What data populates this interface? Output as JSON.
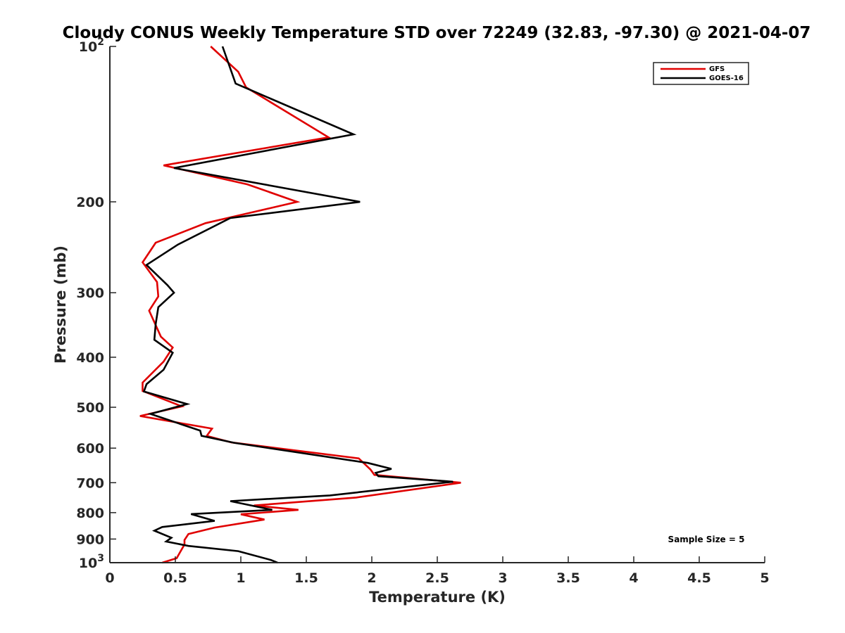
{
  "chart_data": {
    "type": "line",
    "title": "Cloudy CONUS Weekly Temperature STD over 72249 (32.83, -97.30) @ 2021-04-07",
    "xlabel": "Temperature (K)",
    "ylabel": "Pressure (mb)",
    "xlim": [
      0,
      5
    ],
    "ylim": [
      100,
      1000
    ],
    "y_scale": "log",
    "y_reversed": true,
    "x_ticks": [
      "0",
      "0.5",
      "1",
      "1.5",
      "2",
      "2.5",
      "3",
      "3.5",
      "4",
      "4.5",
      "5"
    ],
    "y_ticks": [
      {
        "value": 100,
        "label": "10",
        "sup": "2"
      },
      {
        "value": 200,
        "label": "200",
        "sup": ""
      },
      {
        "value": 300,
        "label": "300",
        "sup": ""
      },
      {
        "value": 400,
        "label": "400",
        "sup": ""
      },
      {
        "value": 500,
        "label": "500",
        "sup": ""
      },
      {
        "value": 600,
        "label": "600",
        "sup": ""
      },
      {
        "value": 700,
        "label": "700",
        "sup": ""
      },
      {
        "value": 800,
        "label": "800",
        "sup": ""
      },
      {
        "value": 900,
        "label": "900",
        "sup": ""
      },
      {
        "value": 1000,
        "label": "10",
        "sup": "3"
      }
    ],
    "grid": false,
    "legend_position": "top-right",
    "annotation": "Sample Size = 5",
    "series": [
      {
        "name": "GFS",
        "color": "#e00000",
        "points": [
          [
            0.77,
            100
          ],
          [
            0.98,
            112
          ],
          [
            1.04,
            120
          ],
          [
            1.67,
            150
          ],
          [
            0.41,
            170
          ],
          [
            1.05,
            185
          ],
          [
            1.43,
            200
          ],
          [
            0.73,
            220
          ],
          [
            0.35,
            240
          ],
          [
            0.25,
            262
          ],
          [
            0.36,
            286
          ],
          [
            0.37,
            305
          ],
          [
            0.3,
            325
          ],
          [
            0.39,
            365
          ],
          [
            0.48,
            383
          ],
          [
            0.41,
            408
          ],
          [
            0.25,
            448
          ],
          [
            0.25,
            465
          ],
          [
            0.55,
            498
          ],
          [
            0.23,
            520
          ],
          [
            0.78,
            550
          ],
          [
            0.74,
            568
          ],
          [
            0.93,
            585
          ],
          [
            1.9,
            628
          ],
          [
            1.99,
            660
          ],
          [
            2.02,
            676
          ],
          [
            2.68,
            700
          ],
          [
            1.88,
            748
          ],
          [
            1.1,
            775
          ],
          [
            1.44,
            790
          ],
          [
            1.0,
            806
          ],
          [
            1.18,
            825
          ],
          [
            0.8,
            855
          ],
          [
            0.6,
            880
          ],
          [
            0.57,
            904
          ],
          [
            0.57,
            922
          ],
          [
            0.51,
            980
          ],
          [
            0.4,
            1000
          ]
        ]
      },
      {
        "name": "GOES-16",
        "color": "#000000",
        "points": [
          [
            0.86,
            100
          ],
          [
            0.96,
            118
          ],
          [
            1.86,
            148
          ],
          [
            0.49,
            172
          ],
          [
            1.91,
            200
          ],
          [
            0.92,
            215
          ],
          [
            0.52,
            242
          ],
          [
            0.28,
            265
          ],
          [
            0.44,
            290
          ],
          [
            0.49,
            300
          ],
          [
            0.37,
            320
          ],
          [
            0.35,
            345
          ],
          [
            0.34,
            370
          ],
          [
            0.48,
            392
          ],
          [
            0.41,
            423
          ],
          [
            0.28,
            451
          ],
          [
            0.26,
            466
          ],
          [
            0.59,
            493
          ],
          [
            0.31,
            515
          ],
          [
            0.69,
            555
          ],
          [
            0.7,
            568
          ],
          [
            0.95,
            586
          ],
          [
            1.97,
            641
          ],
          [
            2.15,
            658
          ],
          [
            2.03,
            670
          ],
          [
            2.05,
            680
          ],
          [
            2.62,
            697
          ],
          [
            1.68,
            741
          ],
          [
            0.92,
            760
          ],
          [
            1.24,
            790
          ],
          [
            0.62,
            805
          ],
          [
            0.8,
            830
          ],
          [
            0.4,
            853
          ],
          [
            0.34,
            867
          ],
          [
            0.47,
            895
          ],
          [
            0.43,
            910
          ],
          [
            0.6,
            928
          ],
          [
            0.98,
            950
          ],
          [
            1.23,
            988
          ],
          [
            1.28,
            1000
          ]
        ]
      }
    ]
  }
}
